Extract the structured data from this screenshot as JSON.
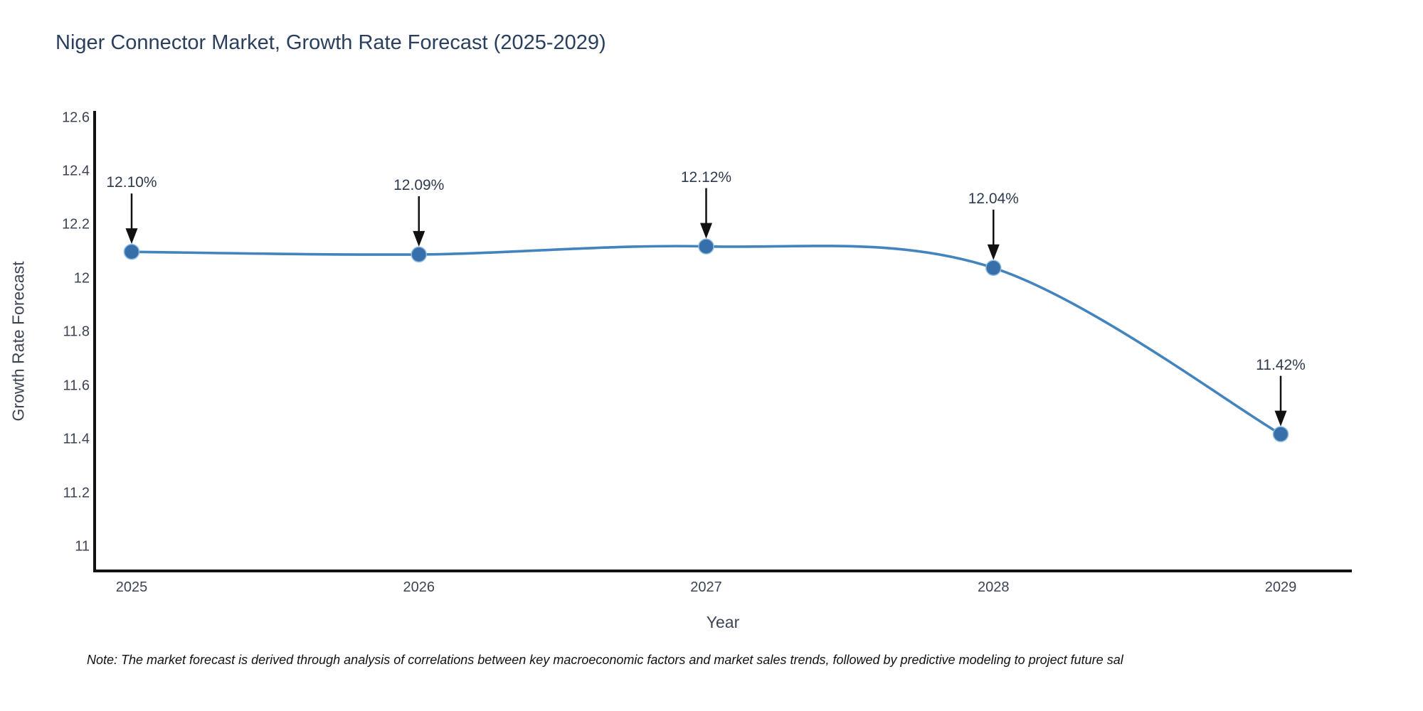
{
  "title": "Niger Connector Market, Growth Rate Forecast (2025-2029)",
  "note": "Note: The market forecast is derived through analysis of correlations between key macroeconomic factors and market sales trends, followed by predictive modeling to project future sal",
  "chart_data": {
    "type": "line",
    "title": "Niger Connector Market, Growth Rate Forecast (2025-2029)",
    "xlabel": "Year",
    "ylabel": "Growth Rate Forecast",
    "x": [
      2025,
      2026,
      2027,
      2028,
      2029
    ],
    "series": [
      {
        "name": "Growth Rate Forecast",
        "values": [
          12.1,
          12.09,
          12.12,
          12.04,
          11.42
        ]
      }
    ],
    "point_labels": [
      "12.10%",
      "12.09%",
      "12.12%",
      "12.04%",
      "11.42%"
    ],
    "ylim": [
      10.91,
      12.62
    ],
    "yticks": [
      11,
      11.2,
      11.4,
      11.6,
      11.8,
      12,
      12.2,
      12.4,
      12.6
    ],
    "ytick_labels": [
      "11",
      "11.2",
      "11.4",
      "11.6",
      "11.8",
      "12",
      "12.2",
      "12.4",
      "12.6"
    ],
    "xtick_labels": [
      "2025",
      "2026",
      "2027",
      "2028",
      "2029"
    ],
    "grid": false,
    "legend": "none",
    "line_shape": "spline",
    "colors": {
      "line": "#4384BE",
      "marker": "#366FA9",
      "marker_edge": "#8FBADC",
      "axis": "#111111",
      "tick_text": "#3C4454",
      "title_text": "#2A3F5F",
      "annotation_text": "#2E3A4E",
      "arrow": "#111111",
      "note_text": "#111111",
      "background": "#FFFFFF"
    }
  }
}
